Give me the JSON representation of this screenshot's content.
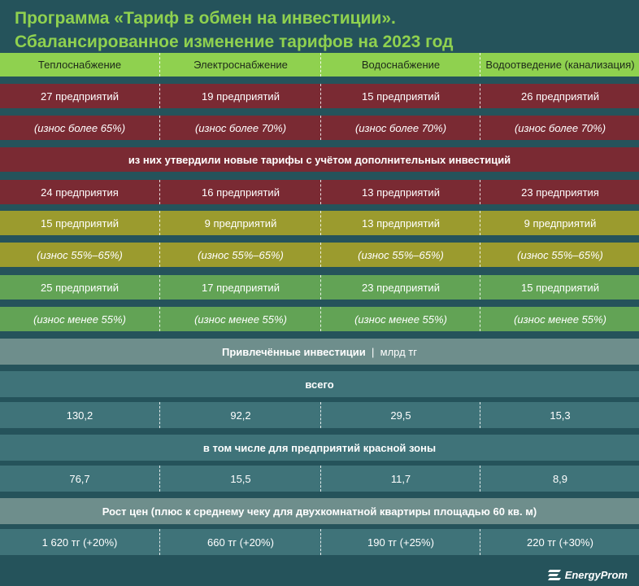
{
  "title_line1": "Программа «Тариф в обмен на инвестиции».",
  "title_line2": "Сбалансированное изменение тарифов на 2023 год",
  "colors": {
    "title": "#8fd14f",
    "header_bg": "#8fd14f",
    "red_zone": "#7a2a33",
    "yellow_zone": "#9b9b2e",
    "green_zone": "#62a355",
    "invest_header": "#6e8e8c",
    "teal_row": "#3f7379",
    "background": "#25535b"
  },
  "chart_data": {
    "type": "table",
    "columns": [
      "Теплоснабжение",
      "Электроснабжение",
      "Водоснабжение",
      "Водоотведение (канализация)"
    ],
    "red_zone": {
      "enterprises": [
        "27 предприятий",
        "19 предприятий",
        "15 предприятий",
        "26 предприятий"
      ],
      "wear": [
        "(износ более 65%)",
        "(износ более 70%)",
        "(износ более 70%)",
        "(износ более 70%)"
      ],
      "approved_title": "из них утвердили новые тарифы с учётом дополнительных инвестиций",
      "approved": [
        "24 предприятия",
        "16 предприятий",
        "13 предприятий",
        "23 предприятия"
      ]
    },
    "yellow_zone": {
      "enterprises": [
        "15 предприятий",
        "9 предприятий",
        "13 предприятий",
        "9 предприятий"
      ],
      "wear": [
        "(износ 55%–65%)",
        "(износ 55%–65%)",
        "(износ 55%–65%)",
        "(износ 55%–65%)"
      ]
    },
    "green_zone": {
      "enterprises": [
        "25 предприятий",
        "17 предприятий",
        "23 предприятий",
        "15 предприятий"
      ],
      "wear": [
        "(износ менее 55%)",
        "(износ менее 55%)",
        "(износ менее 55%)",
        "(износ менее 55%)"
      ]
    },
    "investments": {
      "title": "Привлечённые инвестиции",
      "unit": "млрд тг",
      "total_label": "всего",
      "total": [
        "130,2",
        "92,2",
        "29,5",
        "15,3"
      ],
      "red_label": "в том числе для предприятий красной зоны",
      "red": [
        "76,7",
        "15,5",
        "11,7",
        "8,9"
      ]
    },
    "prices": {
      "title": "Рост цен (плюс к среднему чеку для двухкомнатной квартиры площадью 60 кв. м)",
      "values": [
        "1 620 тг (+20%)",
        "660 тг (+20%)",
        "190 тг (+25%)",
        "220 тг (+30%)"
      ]
    }
  },
  "logo": {
    "text": "EnergyProm",
    "icon": "energyprom-logo-icon"
  }
}
